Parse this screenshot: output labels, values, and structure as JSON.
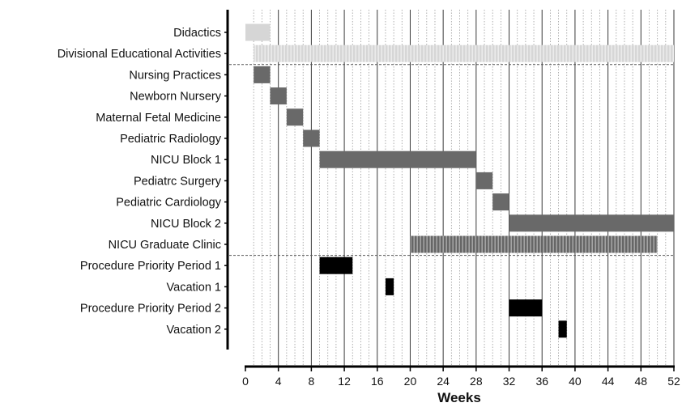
{
  "chart_data": {
    "type": "gantt",
    "title": "",
    "xlabel": "Weeks",
    "ylabel": "",
    "xlim": [
      0,
      52
    ],
    "x_ticks": [
      0,
      4,
      8,
      12,
      16,
      20,
      24,
      28,
      32,
      36,
      40,
      44,
      48,
      52
    ],
    "grid": "vertical lines every 4 weeks (solid) with dotted lines at each week",
    "group_separators_after": [
      "Divisional Educational Activities",
      "NICU Graduate Clinic"
    ],
    "colors": {
      "light": "#d6d6d6",
      "light_striped": "#d6d6d6",
      "dark": "#696969",
      "dark_striped": "#6e6e6e",
      "black": "#000000"
    },
    "tasks": [
      {
        "label": "Didactics",
        "start": 0,
        "end": 3,
        "style": "light"
      },
      {
        "label": "Divisional Educational Activities",
        "start": 1,
        "end": 52,
        "style": "light_striped"
      },
      {
        "label": "Nursing Practices",
        "start": 1,
        "end": 3,
        "style": "dark"
      },
      {
        "label": "Newborn Nursery",
        "start": 3,
        "end": 5,
        "style": "dark"
      },
      {
        "label": "Maternal Fetal Medicine",
        "start": 5,
        "end": 7,
        "style": "dark"
      },
      {
        "label": "Pediatric Radiology",
        "start": 7,
        "end": 9,
        "style": "dark"
      },
      {
        "label": "NICU Block 1",
        "start": 9,
        "end": 28,
        "style": "dark"
      },
      {
        "label": "Pediatrc Surgery",
        "start": 28,
        "end": 30,
        "style": "dark"
      },
      {
        "label": "Pediatric Cardiology",
        "start": 30,
        "end": 32,
        "style": "dark"
      },
      {
        "label": "NICU Block 2",
        "start": 32,
        "end": 52,
        "style": "dark"
      },
      {
        "label": "NICU Graduate Clinic",
        "start": 20,
        "end": 50,
        "style": "dark_striped"
      },
      {
        "label": "Procedure Priority Period 1",
        "start": 9,
        "end": 13,
        "style": "black"
      },
      {
        "label": "Vacation 1",
        "start": 17,
        "end": 18,
        "style": "black"
      },
      {
        "label": "Procedure Priority Period 2",
        "start": 32,
        "end": 36,
        "style": "black"
      },
      {
        "label": "Vacation 2",
        "start": 38,
        "end": 39,
        "style": "black"
      }
    ]
  }
}
